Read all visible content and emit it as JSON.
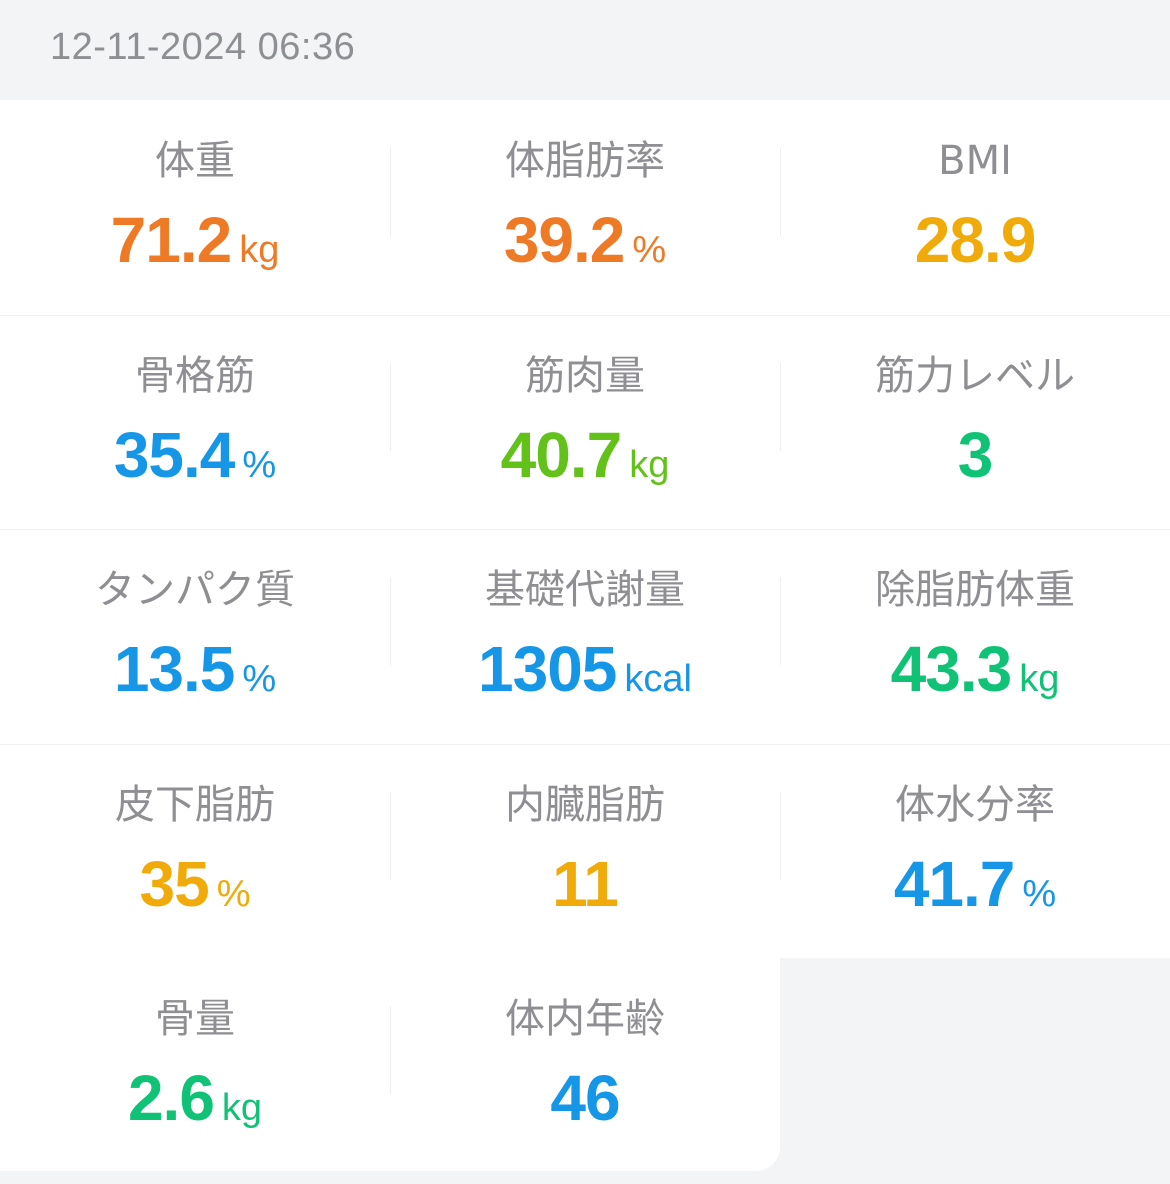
{
  "timestamp": "12-11-2024 06:36",
  "colors": {
    "orange": "#ef7a26",
    "amber": "#f0aa0a",
    "blue": "#1596e6",
    "green": "#62c21a",
    "teal": "#10c276",
    "label": "#8e8e93"
  },
  "metrics": [
    [
      {
        "label": "体重",
        "value": "71.2",
        "unit": "kg",
        "color": "#ef7a26"
      },
      {
        "label": "体脂肪率",
        "value": "39.2",
        "unit": "%",
        "color": "#ef7a26"
      },
      {
        "label": "BMI",
        "value": "28.9",
        "unit": "",
        "color": "#f0aa0a"
      }
    ],
    [
      {
        "label": "骨格筋",
        "value": "35.4",
        "unit": "%",
        "color": "#1596e6"
      },
      {
        "label": "筋肉量",
        "value": "40.7",
        "unit": "kg",
        "color": "#62c21a"
      },
      {
        "label": "筋力レベル",
        "value": "3",
        "unit": "",
        "color": "#10c276"
      }
    ],
    [
      {
        "label": "タンパク質",
        "value": "13.5",
        "unit": "%",
        "color": "#1596e6"
      },
      {
        "label": "基礎代謝量",
        "value": "1305",
        "unit": "kcal",
        "color": "#1596e6"
      },
      {
        "label": "除脂肪体重",
        "value": "43.3",
        "unit": "kg",
        "color": "#10c276"
      }
    ],
    [
      {
        "label": "皮下脂肪",
        "value": "35",
        "unit": "%",
        "color": "#f0aa0a"
      },
      {
        "label": "内臓脂肪",
        "value": "11",
        "unit": "",
        "color": "#f0aa0a"
      },
      {
        "label": "体水分率",
        "value": "41.7",
        "unit": "%",
        "color": "#1596e6"
      }
    ],
    [
      {
        "label": "骨量",
        "value": "2.6",
        "unit": "kg",
        "color": "#10c276"
      },
      {
        "label": "体内年齢",
        "value": "46",
        "unit": "",
        "color": "#1596e6"
      }
    ]
  ]
}
